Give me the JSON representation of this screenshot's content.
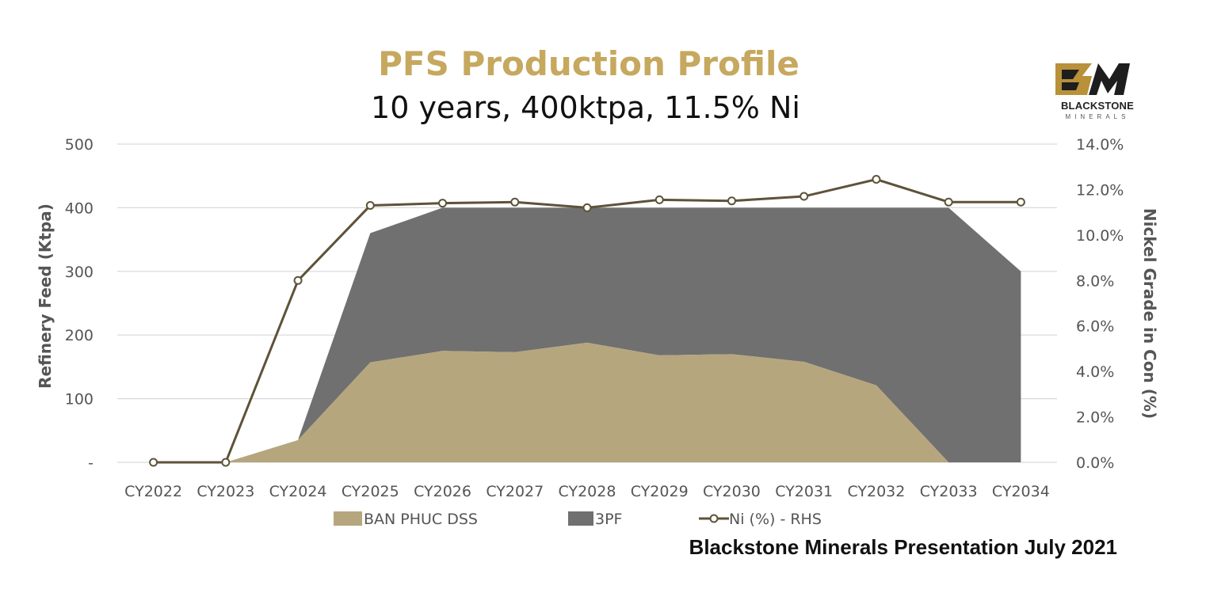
{
  "colors": {
    "title": "#C6A85E",
    "ban_phuc": "#B6A67E",
    "tpf": "#707070",
    "ni_line": "#5E5239",
    "gridline": "#D9D9D9",
    "logo_gold": "#B8913A",
    "logo_dark": "#1E1E1E"
  },
  "logo": {
    "icon": "blackstone-bm-logo-icon",
    "word": "BLACKSTONE",
    "sub": "MINERALS"
  },
  "footer": "Blackstone Minerals Presentation July 2021",
  "chart_data": {
    "type": "area",
    "title": "PFS Production Profile",
    "subtitle": "10 years, 400ktpa, 11.5% Ni",
    "ylabel": "Refinery Feed (Ktpa)",
    "y2label": "Nickel Grade in Con (%)",
    "categories": [
      "CY2022",
      "CY2023",
      "CY2024",
      "CY2025",
      "CY2026",
      "CY2027",
      "CY2028",
      "CY2029",
      "CY2030",
      "CY2031",
      "CY2032",
      "CY2033",
      "CY2034"
    ],
    "ylim": [
      0,
      500
    ],
    "yticks": [
      "-",
      "100",
      "200",
      "300",
      "400",
      "500"
    ],
    "y2lim": [
      0,
      14
    ],
    "y2ticks": [
      "0.0%",
      "2.0%",
      "4.0%",
      "6.0%",
      "8.0%",
      "10.0%",
      "12.0%",
      "14.0%"
    ],
    "grid": true,
    "legend_position": "bottom",
    "series": [
      {
        "name": "BAN PHUC DSS",
        "kind": "stacked-area",
        "axis": "left",
        "values": [
          0,
          0,
          35,
          157,
          175,
          173,
          188,
          168,
          170,
          158,
          121,
          0,
          0
        ]
      },
      {
        "name": "3PF",
        "kind": "stacked-area",
        "axis": "left",
        "values": [
          0,
          0,
          0,
          203,
          225,
          227,
          212,
          232,
          230,
          242,
          279,
          400,
          300
        ]
      },
      {
        "name": "Ni (%) - RHS",
        "kind": "line-marker",
        "axis": "right",
        "values": [
          0,
          0,
          8.0,
          11.3,
          11.4,
          11.45,
          11.2,
          11.55,
          11.5,
          11.7,
          12.45,
          11.45,
          11.45
        ]
      }
    ]
  }
}
